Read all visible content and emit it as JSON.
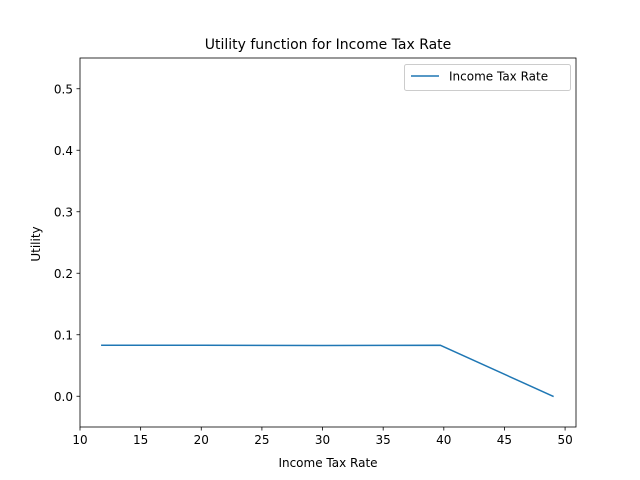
{
  "chart_data": {
    "type": "line",
    "title": "Utility function for Income Tax Rate",
    "xlabel": "Income Tax Rate",
    "ylabel": "Utility",
    "xlim": [
      10.0,
      50.9
    ],
    "ylim": [
      -0.05,
      0.55
    ],
    "xticks": [
      10,
      15,
      20,
      25,
      30,
      35,
      40,
      45,
      50
    ],
    "yticks": [
      0.0,
      0.1,
      0.2,
      0.3,
      0.4,
      0.5
    ],
    "ytick_labels": [
      "0.0",
      "0.1",
      "0.2",
      "0.3",
      "0.4",
      "0.5"
    ],
    "grid": false,
    "legend_position": "top-right",
    "series": [
      {
        "name": "Income Tax Rate",
        "color": "#1f77b4",
        "x": [
          11.8,
          20.0,
          30.0,
          39.7,
          49.0
        ],
        "y": [
          0.083,
          0.083,
          0.0825,
          0.083,
          0.0
        ]
      }
    ]
  }
}
